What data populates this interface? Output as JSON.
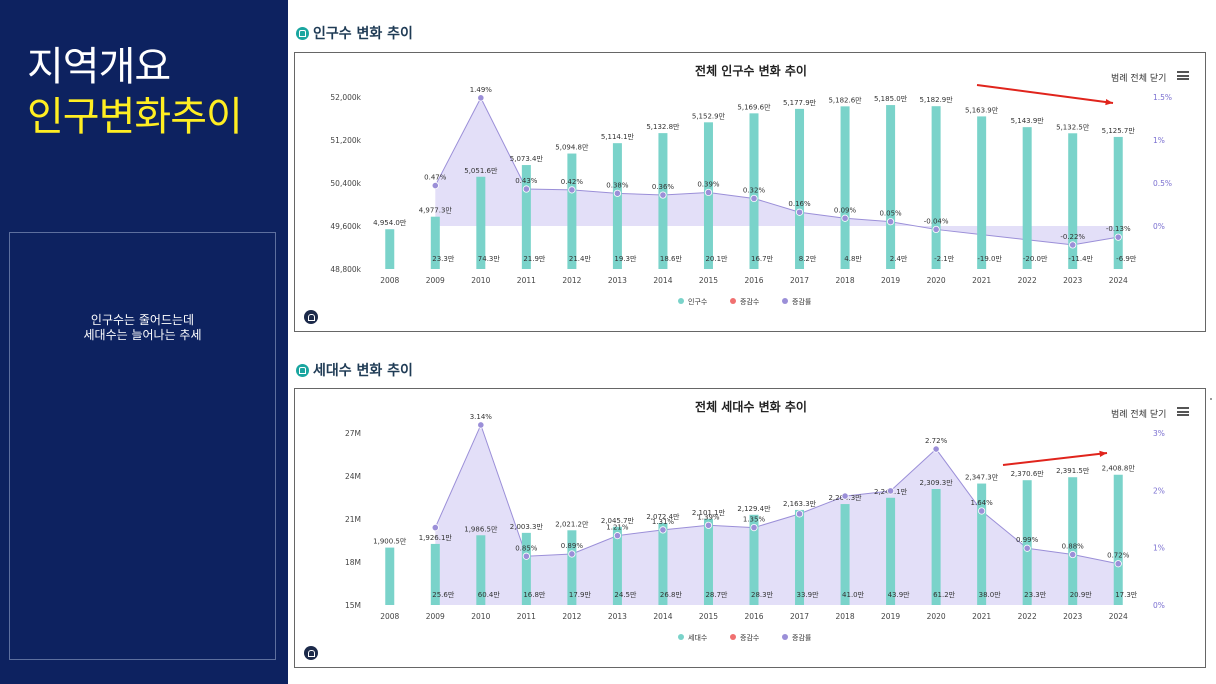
{
  "slide": {
    "title_line1": "지역개요",
    "title_line2": "인구변화추이",
    "note_lines": [
      "인구수는 줄어드는데",
      "세대수는 늘어나는 추세"
    ]
  },
  "colors": {
    "bar": "#7ad3ca",
    "bar_dark": "#78c2d4",
    "rate": "#9b8fd8",
    "rate_fill": "#d9d4f5",
    "decrease": "#f07070",
    "arrow": "#e0241c"
  },
  "sections": [
    {
      "heading": "인구수 변화 추이",
      "legend_toggle": "범례 전체 닫기"
    },
    {
      "heading": "세대수 변화 추이",
      "legend_toggle": "범례 전체 닫기"
    }
  ],
  "chart_data": [
    {
      "type": "bar",
      "title": "전체 인구수 변화 추이",
      "categories": [
        "2008",
        "2009",
        "2010",
        "2011",
        "2012",
        "2013",
        "2014",
        "2015",
        "2016",
        "2017",
        "2018",
        "2019",
        "2020",
        "2021",
        "2022",
        "2023",
        "2024"
      ],
      "ylim": [
        48800,
        52000
      ],
      "y_ticks": [
        "52,000k",
        "51,200k",
        "50,400k",
        "49,600k",
        "48,800k"
      ],
      "y2_ticks": [
        "1.5%",
        "1%",
        "0.5%",
        "0%"
      ],
      "y2lim": [
        -0.5,
        1.5
      ],
      "series": [
        {
          "name": "인구수",
          "type": "bar",
          "values": [
            49540,
            49773,
            50516,
            50734,
            50948,
            51141,
            51328,
            51529,
            51696,
            51779,
            51826,
            51850,
            51829,
            51639,
            51439,
            51325,
            51257
          ],
          "labels": [
            "4,954.0만",
            "4,977.3만",
            "5,051.6만",
            "5,073.4만",
            "5,094.8만",
            "5,114.1만",
            "5,132.8만",
            "5,152.9만",
            "5,169.6만",
            "5,177.9만",
            "5,182.6만",
            "5,185.0만",
            "5,182.9만",
            "5,163.9만",
            "5,143.9만",
            "5,132.5만",
            "5,125.7만"
          ]
        },
        {
          "name": "증감수",
          "type": "label",
          "labels": [
            "",
            "23.3만",
            "74.3만",
            "21.9만",
            "21.4만",
            "19.3만",
            "18.6만",
            "20.1만",
            "16.7만",
            "8.2만",
            "4.8만",
            "2.4만",
            "-2.1만",
            "-19.0만",
            "-20.0만",
            "-11.4만",
            "-6.9만"
          ]
        },
        {
          "name": "증감률",
          "type": "area",
          "values": [
            null,
            0.47,
            1.49,
            0.43,
            0.42,
            0.38,
            0.36,
            0.39,
            0.32,
            0.16,
            0.09,
            0.05,
            -0.04,
            null,
            null,
            -0.22,
            -0.13
          ],
          "labels": [
            "",
            "0.47%",
            "1.49%",
            "0.43%",
            "0.42%",
            "0.38%",
            "0.36%",
            "0.39%",
            "0.32%",
            "0.16%",
            "0.09%",
            "0.05%",
            "-0.04%",
            "",
            "",
            "-0.22%",
            "-0.13%"
          ]
        }
      ],
      "legend": [
        "인구수",
        "증감수",
        "증감률"
      ],
      "legend_position": "bottom"
    },
    {
      "type": "bar",
      "title": "전체 세대수 변화 추이",
      "categories": [
        "2008",
        "2009",
        "2010",
        "2011",
        "2012",
        "2013",
        "2014",
        "2015",
        "2016",
        "2017",
        "2018",
        "2019",
        "2020",
        "2021",
        "2022",
        "2023",
        "2024"
      ],
      "ylim": [
        15,
        27
      ],
      "y_ticks": [
        "27M",
        "24M",
        "21M",
        "18M",
        "15M"
      ],
      "y2_ticks": [
        "3%",
        "2%",
        "1%",
        "0%"
      ],
      "y2lim": [
        0,
        3
      ],
      "series": [
        {
          "name": "세대수",
          "type": "bar",
          "values": [
            19.005,
            19.261,
            19.865,
            20.033,
            20.212,
            20.457,
            20.724,
            21.011,
            21.294,
            21.633,
            22.043,
            22.481,
            23.093,
            23.473,
            23.706,
            23.915,
            24.088
          ],
          "labels": [
            "1,900.5만",
            "1,926.1만",
            "1,986.5만",
            "2,003.3만",
            "2,021.2만",
            "2,045.7만",
            "2,072.4만",
            "2,101.1만",
            "2,129.4만",
            "2,163.3만",
            "2,204.3만",
            "2,248.1만",
            "2,309.3만",
            "2,347.3만",
            "2,370.6만",
            "2,391.5만",
            "2,408.8만"
          ]
        },
        {
          "name": "증감수",
          "type": "label",
          "labels": [
            "",
            "25.6만",
            "60.4만",
            "16.8만",
            "17.9만",
            "24.5만",
            "26.8만",
            "28.7만",
            "28.3만",
            "33.9만",
            "41.0만",
            "43.9만",
            "61.2만",
            "38.0만",
            "23.3만",
            "20.9만",
            "17.3만"
          ]
        },
        {
          "name": "증감률",
          "type": "area",
          "values": [
            null,
            1.35,
            3.14,
            0.85,
            0.89,
            1.21,
            1.31,
            1.39,
            1.35,
            1.59,
            1.9,
            1.99,
            2.72,
            1.64,
            0.99,
            0.88,
            0.72
          ],
          "labels": [
            "",
            "",
            "3.14%",
            "0.85%",
            "0.89%",
            "1.21%",
            "1.31%",
            "1.39%",
            "1.35%",
            "",
            "",
            "",
            "2.72%",
            "1.64%",
            "0.99%",
            "0.88%",
            "0.72%"
          ]
        }
      ],
      "legend": [
        "세대수",
        "증감수",
        "증감률"
      ],
      "legend_position": "bottom"
    }
  ]
}
